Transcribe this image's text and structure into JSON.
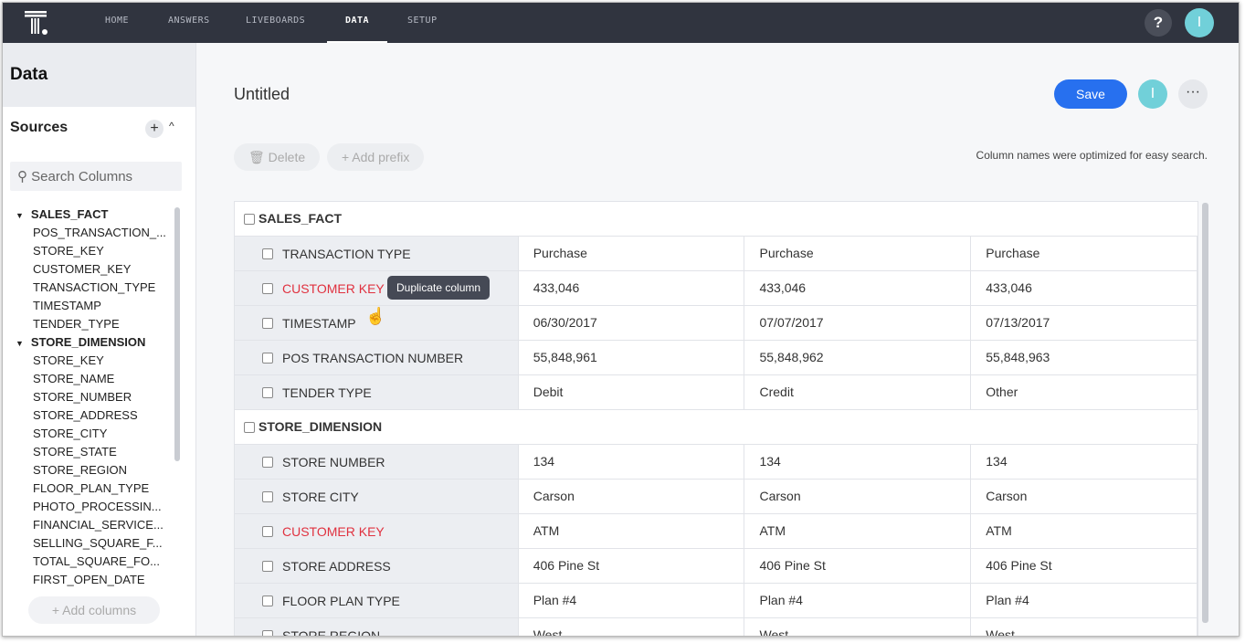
{
  "nav": {
    "items": [
      "HOME",
      "ANSWERS",
      "LIVEBOARDS",
      "DATA",
      "SETUP"
    ],
    "active": "DATA",
    "help": "?",
    "avatar": "I"
  },
  "sidebar": {
    "title": "Data",
    "sources": "Sources",
    "search_placeholder": "Search Columns",
    "add_columns": "Add columns",
    "tree": [
      {
        "group": "SALES_FACT",
        "items": [
          "POS_TRANSACTION_...",
          "STORE_KEY",
          "CUSTOMER_KEY",
          "TRANSACTION_TYPE",
          "TIMESTAMP",
          "TENDER_TYPE"
        ]
      },
      {
        "group": "STORE_DIMENSION",
        "items": [
          "STORE_KEY",
          "STORE_NAME",
          "STORE_NUMBER",
          "STORE_ADDRESS",
          "STORE_CITY",
          "STORE_STATE",
          "STORE_REGION",
          "FLOOR_PLAN_TYPE",
          "PHOTO_PROCESSIN...",
          "FINANCIAL_SERVICE...",
          "SELLING_SQUARE_F...",
          "TOTAL_SQUARE_FO...",
          "FIRST_OPEN_DATE"
        ]
      }
    ]
  },
  "main": {
    "title": "Untitled",
    "save": "Save",
    "avatar": "I",
    "more": "···",
    "delete": "Delete",
    "add_prefix": "Add prefix",
    "note": "Column names were optimized for easy search.",
    "tooltip": "Duplicate column",
    "sections": [
      {
        "name": "SALES_FACT",
        "rows": [
          {
            "label": "TRANSACTION TYPE",
            "values": [
              "Purchase",
              "Purchase",
              "Purchase"
            ]
          },
          {
            "label": "CUSTOMER KEY",
            "error": true,
            "values": [
              "433,046",
              "433,046",
              "433,046"
            ]
          },
          {
            "label": "TIMESTAMP",
            "values": [
              "06/30/2017",
              "07/07/2017",
              "07/13/2017"
            ]
          },
          {
            "label": "POS TRANSACTION NUMBER",
            "values": [
              "55,848,961",
              "55,848,962",
              "55,848,963"
            ]
          },
          {
            "label": "TENDER TYPE",
            "values": [
              "Debit",
              "Credit",
              "Other"
            ]
          }
        ]
      },
      {
        "name": "STORE_DIMENSION",
        "rows": [
          {
            "label": "STORE NUMBER",
            "values": [
              "134",
              "134",
              "134"
            ]
          },
          {
            "label": "STORE CITY",
            "values": [
              "Carson",
              "Carson",
              "Carson"
            ]
          },
          {
            "label": "CUSTOMER KEY",
            "error": true,
            "values": [
              "ATM",
              "ATM",
              "ATM"
            ]
          },
          {
            "label": "STORE ADDRESS",
            "values": [
              "406 Pine St",
              "406 Pine St",
              "406 Pine St"
            ]
          },
          {
            "label": "FLOOR PLAN TYPE",
            "values": [
              "Plan #4",
              "Plan #4",
              "Plan #4"
            ]
          },
          {
            "label": "STORE REGION",
            "values": [
              "West",
              "West",
              "West"
            ]
          }
        ]
      }
    ]
  }
}
